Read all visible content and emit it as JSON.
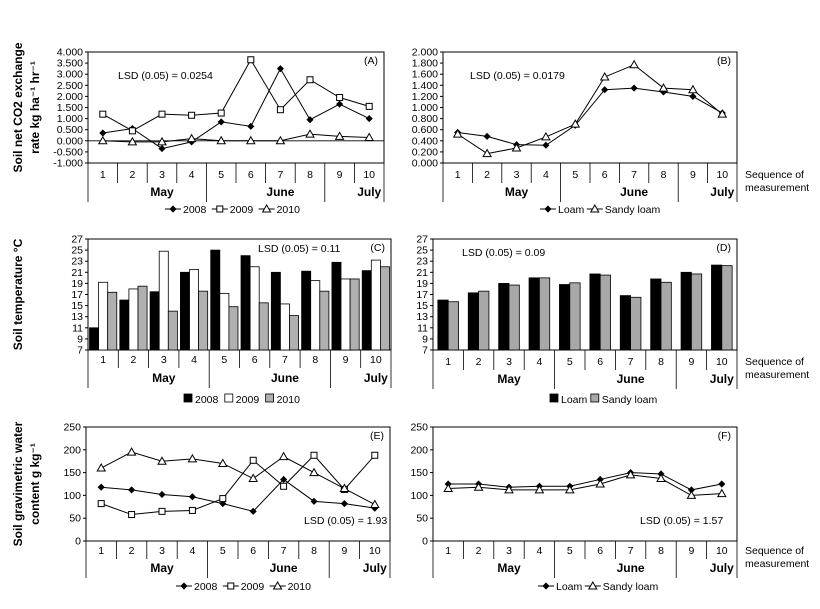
{
  "figure": {
    "x_note": "Sequence of\nmeasurement",
    "months": [
      "May",
      "June",
      "July"
    ],
    "sequence": [
      "1",
      "2",
      "3",
      "4",
      "5",
      "6",
      "7",
      "8",
      "9",
      "10"
    ]
  },
  "chart_data": [
    {
      "id": "A",
      "panel_label": "(A)",
      "type": "line",
      "ylabel": "Soil net CO2 exchange\nrate kg ha⁻¹ hr⁻¹",
      "ylim": [
        -1.0,
        4.0
      ],
      "yticks": [
        "4.000",
        "3.500",
        "3.000",
        "2.500",
        "2.000",
        "1.500",
        "1.000",
        "0.500",
        "0.000",
        "-0.500",
        "-1.000"
      ],
      "annotation": "LSD (0.05) = 0.0254",
      "x": [
        1,
        2,
        3,
        4,
        5,
        6,
        7,
        8,
        9,
        10
      ],
      "series": [
        {
          "name": "2008",
          "marker": "diamond",
          "values": [
            0.35,
            0.55,
            -0.35,
            -0.05,
            0.85,
            0.65,
            3.25,
            0.95,
            1.65,
            1.0
          ]
        },
        {
          "name": "2009",
          "marker": "square",
          "values": [
            1.2,
            0.45,
            1.2,
            1.15,
            1.25,
            3.65,
            1.4,
            2.75,
            1.95,
            1.55
          ]
        },
        {
          "name": "2010",
          "marker": "triangle",
          "values": [
            0.0,
            -0.05,
            -0.05,
            0.1,
            0.0,
            0.0,
            0.0,
            0.3,
            0.2,
            0.15
          ]
        }
      ]
    },
    {
      "id": "B",
      "panel_label": "(B)",
      "type": "line",
      "ylabel": "",
      "ylim": [
        0.0,
        2.0
      ],
      "yticks": [
        "2.000",
        "1.800",
        "1.600",
        "1.400",
        "1.200",
        "1.000",
        "0.800",
        "0.600",
        "0.400",
        "0.200",
        "0.000"
      ],
      "annotation": "LSD (0.05) = 0.0179",
      "x": [
        1,
        2,
        3,
        4,
        5,
        6,
        7,
        8,
        9,
        10
      ],
      "series": [
        {
          "name": "Loam",
          "marker": "diamond",
          "values": [
            0.55,
            0.48,
            0.33,
            0.32,
            0.68,
            1.32,
            1.35,
            1.28,
            1.2,
            0.9
          ]
        },
        {
          "name": "Sandy loam",
          "marker": "triangle",
          "values": [
            0.52,
            0.17,
            0.27,
            0.47,
            0.7,
            1.55,
            1.77,
            1.35,
            1.32,
            0.88
          ]
        }
      ]
    },
    {
      "id": "C",
      "panel_label": "(C)",
      "type": "bar",
      "ylabel": "Soil temperature °C",
      "ylim": [
        7,
        27
      ],
      "yticks": [
        "27",
        "25",
        "23",
        "21",
        "19",
        "17",
        "15",
        "13",
        "11",
        "9",
        "7"
      ],
      "annotation": "LSD (0.05) = 0.11",
      "categories": [
        "1",
        "2",
        "3",
        "4",
        "5",
        "6",
        "7",
        "8",
        "9",
        "10"
      ],
      "series": [
        {
          "name": "2008",
          "fill": "#000000",
          "values": [
            11.0,
            16.0,
            17.5,
            21.0,
            25.0,
            24.0,
            21.0,
            21.2,
            22.8,
            21.3
          ]
        },
        {
          "name": "2009",
          "fill": "#ffffff",
          "values": [
            19.2,
            18.0,
            24.8,
            21.5,
            17.2,
            22.0,
            15.3,
            19.5,
            19.8,
            23.2
          ]
        },
        {
          "name": "2010",
          "fill": "#b0b0b0",
          "values": [
            17.4,
            18.5,
            14.0,
            17.6,
            14.8,
            15.5,
            13.2,
            17.6,
            19.8,
            22.0
          ]
        }
      ]
    },
    {
      "id": "D",
      "panel_label": "(D)",
      "type": "bar",
      "ylabel": "",
      "ylim": [
        7,
        27
      ],
      "yticks": [
        "27",
        "25",
        "23",
        "21",
        "19",
        "17",
        "15",
        "13",
        "11",
        "9",
        "7"
      ],
      "annotation": "LSD (0.05) = 0.09",
      "categories": [
        "1",
        "2",
        "3",
        "4",
        "5",
        "6",
        "7",
        "8",
        "9",
        "10"
      ],
      "series": [
        {
          "name": "Loam",
          "fill": "#000000",
          "values": [
            16.0,
            17.3,
            19.0,
            20.0,
            18.8,
            20.7,
            16.8,
            19.8,
            21.0,
            22.3
          ]
        },
        {
          "name": "Sandy loam",
          "fill": "#a8a8a8",
          "values": [
            15.7,
            17.6,
            18.7,
            20.0,
            19.1,
            20.5,
            16.5,
            19.2,
            20.7,
            22.2
          ]
        }
      ]
    },
    {
      "id": "E",
      "panel_label": "(E)",
      "type": "line",
      "ylabel": "Soil gravimetric water\ncontent g kg⁻¹",
      "ylim": [
        0,
        250
      ],
      "yticks": [
        "250",
        "200",
        "150",
        "100",
        "50",
        "0"
      ],
      "annotation": "LSD (0.05) = 1.93",
      "x": [
        1,
        2,
        3,
        4,
        5,
        6,
        7,
        8,
        9,
        10
      ],
      "series": [
        {
          "name": "2008",
          "marker": "diamond",
          "values": [
            118,
            112,
            102,
            97,
            82,
            65,
            135,
            87,
            82,
            72
          ]
        },
        {
          "name": "2009",
          "marker": "square",
          "values": [
            82,
            58,
            65,
            67,
            93,
            177,
            120,
            188,
            113,
            188
          ]
        },
        {
          "name": "2010",
          "marker": "triangle",
          "values": [
            160,
            195,
            175,
            180,
            170,
            137,
            185,
            150,
            115,
            80
          ]
        }
      ]
    },
    {
      "id": "F",
      "panel_label": "(F)",
      "type": "line",
      "ylabel": "",
      "ylim": [
        0,
        250
      ],
      "yticks": [
        "250",
        "200",
        "150",
        "100",
        "50",
        "0"
      ],
      "annotation": "LSD (0.05) = 1.57",
      "x": [
        1,
        2,
        3,
        4,
        5,
        6,
        7,
        8,
        9,
        10
      ],
      "series": [
        {
          "name": "Loam",
          "marker": "diamond",
          "values": [
            125,
            125,
            118,
            120,
            120,
            135,
            150,
            147,
            112,
            125
          ]
        },
        {
          "name": "Sandy loam",
          "marker": "triangle",
          "values": [
            115,
            118,
            112,
            112,
            112,
            125,
            145,
            137,
            100,
            104
          ]
        }
      ]
    }
  ]
}
